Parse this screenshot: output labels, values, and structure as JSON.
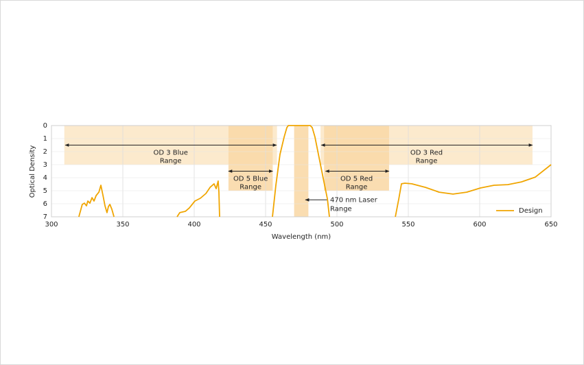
{
  "chart_data": {
    "type": "line",
    "xlabel": "Wavelength (nm)",
    "ylabel": "Optical Density",
    "xlim": [
      300,
      650
    ],
    "ylim": [
      0,
      7
    ],
    "y_inverted": true,
    "xticks": [
      300,
      350,
      400,
      450,
      500,
      550,
      600,
      650
    ],
    "yticks": [
      0,
      1,
      2,
      3,
      4,
      5,
      6,
      7
    ],
    "grid": true,
    "legend": "lower right",
    "x": [
      319.2,
      321.6,
      323.1,
      324.5,
      325.5,
      326.9,
      328.4,
      329.8,
      331.3,
      333.2,
      334.6,
      336.1,
      337.5,
      338.9,
      339.9,
      340.9,
      342.3,
      343.8,
      366,
      388.0,
      389.9,
      393.8,
      396.6,
      400.5,
      404.3,
      408.2,
      411.1,
      413.9,
      415.4,
      416.8,
      417.3,
      417.8,
      436,
      454.8,
      457.2,
      460.1,
      463.0,
      464.9,
      465.9,
      481.3,
      482.7,
      484.6,
      487.5,
      490.4,
      493.3,
      494.7,
      518,
      540.9,
      543.3,
      545.2,
      547.6,
      552.4,
      562.0,
      571.6,
      581.3,
      590.9,
      600.5,
      610.1,
      619.7,
      629.3,
      639.0,
      650
    ],
    "series": [
      {
        "name": "Design",
        "color": "#f0a500",
        "values": [
          7,
          6.05,
          5.95,
          6.16,
          5.79,
          5.95,
          5.53,
          5.79,
          5.37,
          5.11,
          4.58,
          5.37,
          6.16,
          6.68,
          6.21,
          6.05,
          6.42,
          7,
          null,
          7,
          6.68,
          6.58,
          6.32,
          5.79,
          5.58,
          5.21,
          4.74,
          4.47,
          4.84,
          4.26,
          5.11,
          7,
          null,
          7,
          4.58,
          2.21,
          0.89,
          0.16,
          0,
          0,
          0.16,
          0.89,
          2.47,
          4.05,
          5.63,
          7,
          null,
          7,
          5.63,
          4.47,
          4.42,
          4.47,
          4.74,
          5.11,
          5.26,
          5.11,
          4.79,
          4.58,
          4.53,
          4.32,
          3.95,
          3.0
        ]
      }
    ],
    "regions": [
      {
        "label": [
          "OD 3 Blue",
          "Range"
        ],
        "x": [
          309,
          458
        ],
        "y": [
          0,
          3
        ],
        "color": "#fce8c8",
        "arrow": {
          "x": [
            309.6,
            457.7
          ],
          "y": 1.5
        }
      },
      {
        "label": [
          "OD 3 Red",
          "Range"
        ],
        "x": [
          488.5,
          637
        ],
        "y": [
          0,
          3
        ],
        "color": "#fce8c8",
        "arrow": {
          "x": [
            489,
            637
          ],
          "y": 1.5
        }
      },
      {
        "label": [
          "OD 5 Blue",
          "Range"
        ],
        "x": [
          424,
          455
        ],
        "y": [
          0,
          5
        ],
        "color": "#f9d9a8",
        "arrow": {
          "x": [
            424,
            455
          ],
          "y": 3.5
        }
      },
      {
        "label": [
          "OD 5 Red",
          "Range"
        ],
        "x": [
          491,
          536.5
        ],
        "y": [
          0,
          5
        ],
        "color": "#f9d9a8",
        "arrow": {
          "x": [
            492,
            536.5
          ],
          "y": 3.5
        }
      },
      {
        "label": [
          "470 nm Laser",
          "Range"
        ],
        "x": [
          470,
          480
        ],
        "y": [
          0,
          7
        ],
        "color": "#f9d9a8",
        "pointer": {
          "y": 5.7
        }
      }
    ]
  }
}
